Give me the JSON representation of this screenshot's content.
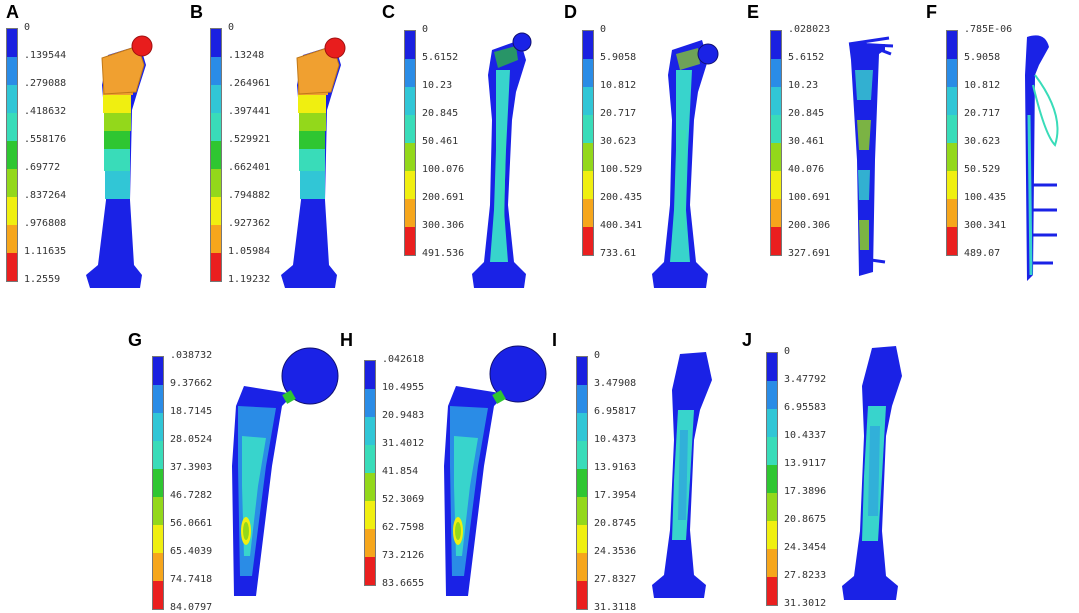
{
  "colors": {
    "scale": [
      "#1a20e0",
      "#2a8ce6",
      "#31c6d6",
      "#39dcb9",
      "#2fc631",
      "#93d81b",
      "#f0ef10",
      "#f6a61c",
      "#ea1f1f"
    ],
    "blue": "#1a22e6",
    "cyan": "#38d4cc",
    "head_red": "#e81d1d",
    "orange": "#f0a030"
  },
  "panels": [
    {
      "label": "A",
      "ticks": [
        "0",
        ".139544",
        ".279088",
        ".418632",
        ".558176",
        ".69772",
        ".837264",
        ".976808",
        "1.11635",
        "1.2559"
      ]
    },
    {
      "label": "B",
      "ticks": [
        "0",
        ".13248",
        ".264961",
        ".397441",
        ".529921",
        ".662401",
        ".794882",
        ".927362",
        "1.05984",
        "1.19232"
      ]
    },
    {
      "label": "C",
      "ticks": [
        "0",
        "5.6152",
        "10.23",
        "20.845",
        "50.461",
        "100.076",
        "200.691",
        "300.306",
        "491.536"
      ]
    },
    {
      "label": "D",
      "ticks": [
        "0",
        "5.9058",
        "10.812",
        "20.717",
        "30.623",
        "100.529",
        "200.435",
        "400.341",
        "733.61"
      ]
    },
    {
      "label": "E",
      "ticks": [
        ".028023",
        "5.6152",
        "10.23",
        "20.845",
        "30.461",
        "40.076",
        "100.691",
        "200.306",
        "327.691"
      ]
    },
    {
      "label": "F",
      "ticks": [
        ".785E-06",
        "5.9058",
        "10.812",
        "20.717",
        "30.623",
        "50.529",
        "100.435",
        "300.341",
        "489.07"
      ]
    },
    {
      "label": "G",
      "ticks": [
        ".038732",
        "9.37662",
        "18.7145",
        "28.0524",
        "37.3903",
        "46.7282",
        "56.0661",
        "65.4039",
        "74.7418",
        "84.0797"
      ]
    },
    {
      "label": "H",
      "ticks": [
        ".042618",
        "10.4955",
        "20.9483",
        "31.4012",
        "41.854",
        "52.3069",
        "62.7598",
        "73.2126",
        "83.6655"
      ]
    },
    {
      "label": "I",
      "ticks": [
        "0",
        "3.47908",
        "6.95817",
        "10.4373",
        "13.9163",
        "17.3954",
        "20.8745",
        "24.3536",
        "27.8327",
        "31.3118"
      ]
    },
    {
      "label": "J",
      "ticks": [
        "0",
        "3.47792",
        "6.95583",
        "10.4337",
        "13.9117",
        "17.3896",
        "20.8675",
        "24.3454",
        "27.8233",
        "31.3012"
      ]
    }
  ]
}
